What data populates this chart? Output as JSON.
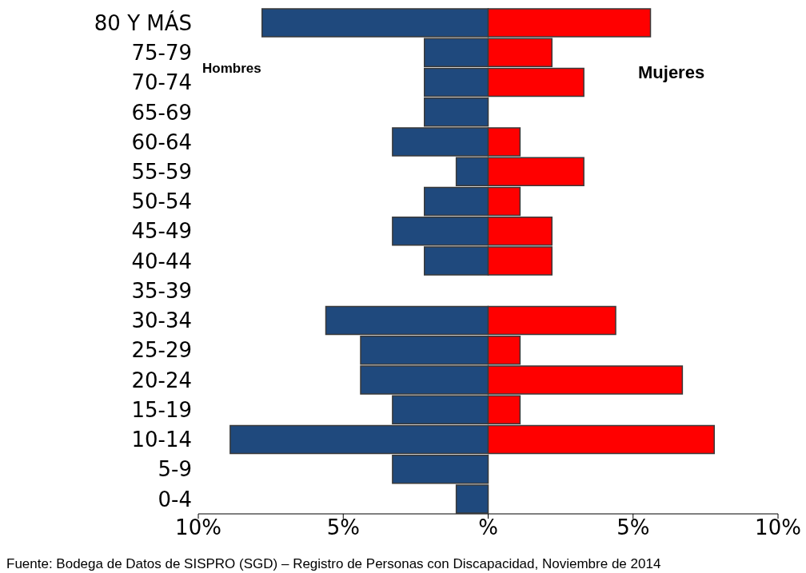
{
  "chart_data": {
    "type": "bar",
    "orientation": "horizontal",
    "stacked": true,
    "categories": [
      "80 Y MÁS",
      "75-79",
      "70-74",
      "65-69",
      "60-64",
      "55-59",
      "50-54",
      "45-49",
      "40-44",
      "35-39",
      "30-34",
      "25-29",
      "20-24",
      "15-19",
      "10-14",
      "5-9",
      "0-4"
    ],
    "series": [
      {
        "name": "Hombres",
        "color": "#1f497d",
        "values": [
          -7.8,
          -2.2,
          -2.2,
          -2.2,
          -3.3,
          -1.1,
          -2.2,
          -3.3,
          -2.2,
          0,
          -5.6,
          -4.4,
          -4.4,
          -3.3,
          -8.9,
          -3.3,
          -1.1
        ]
      },
      {
        "name": "Mujeres",
        "color": "#ff0000",
        "values": [
          5.6,
          2.2,
          3.3,
          0,
          1.1,
          3.3,
          1.1,
          2.2,
          2.2,
          0,
          4.4,
          1.1,
          6.7,
          1.1,
          7.8,
          0,
          0
        ]
      }
    ],
    "xlim": [
      -10,
      10
    ],
    "xticks": [
      {
        "value": -10,
        "label": "10%"
      },
      {
        "value": -5,
        "label": "5%"
      },
      {
        "value": 0,
        "label": "%"
      },
      {
        "value": 5,
        "label": "5%"
      },
      {
        "value": 10,
        "label": "10%"
      }
    ],
    "grid": false,
    "legend": false,
    "annotations": [
      "Fuente: Bodega de Datos de SISPRO (SGD) – Registro de Personas con Discapacidad, Noviembre de 2014"
    ]
  }
}
